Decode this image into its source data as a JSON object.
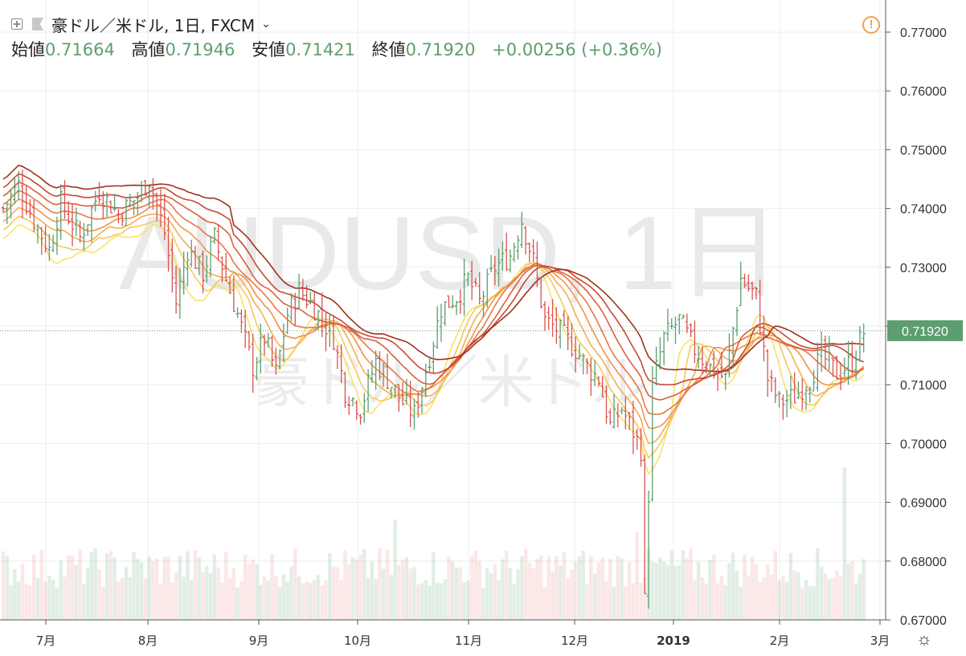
{
  "legend": {
    "symbol_name": "豪ドル／米ドル, 1日, FXCM",
    "chevron": "⌄",
    "open_label": "始値",
    "open_value": "0.71664",
    "high_label": "高値",
    "high_value": "0.71946",
    "low_label": "安値",
    "low_value": "0.71421",
    "close_label": "終値",
    "close_value": "0.71920",
    "change": "+0.00256 (+0.36%)"
  },
  "watermark": {
    "line1": "AUDUSD, 1日",
    "line2": "豪ドル／米ドル"
  },
  "alert_icon": "!",
  "settings_icon": "☼",
  "colors": {
    "up": "#5d9e6e",
    "down": "#d9534f",
    "price_label_bg": "#5d9e6e",
    "ma_dark": "#a0301e",
    "ma_light": "#f7e26b"
  },
  "chart_data": {
    "type": "candlestick",
    "symbol": "AUDUSD",
    "interval": "1日",
    "ylim": [
      0.67,
      0.775
    ],
    "y_ticks": [
      "0.77000",
      "0.76000",
      "0.75000",
      "0.74000",
      "0.73000",
      "0.72000",
      "0.71000",
      "0.70000",
      "0.69000",
      "0.68000",
      "0.67000"
    ],
    "x_ticks": [
      "7月",
      "8月",
      "9月",
      "10月",
      "11月",
      "12月",
      "2019",
      "2月",
      "3月"
    ],
    "last_price": "0.71920",
    "price_keypoints": [
      [
        0,
        0.74
      ],
      [
        4,
        0.744
      ],
      [
        8,
        0.738
      ],
      [
        12,
        0.733
      ],
      [
        15,
        0.741
      ],
      [
        20,
        0.735
      ],
      [
        25,
        0.743
      ],
      [
        30,
        0.739
      ],
      [
        35,
        0.742
      ],
      [
        38,
        0.745
      ],
      [
        42,
        0.736
      ],
      [
        45,
        0.724
      ],
      [
        48,
        0.733
      ],
      [
        52,
        0.729
      ],
      [
        55,
        0.735
      ],
      [
        58,
        0.728
      ],
      [
        61,
        0.722
      ],
      [
        65,
        0.713
      ],
      [
        68,
        0.718
      ],
      [
        71,
        0.712
      ],
      [
        74,
        0.722
      ],
      [
        77,
        0.726
      ],
      [
        80,
        0.724
      ],
      [
        83,
        0.721
      ],
      [
        86,
        0.718
      ],
      [
        89,
        0.709
      ],
      [
        93,
        0.706
      ],
      [
        97,
        0.714
      ],
      [
        101,
        0.71
      ],
      [
        104,
        0.707
      ],
      [
        107,
        0.705
      ],
      [
        111,
        0.715
      ],
      [
        114,
        0.723
      ],
      [
        118,
        0.725
      ],
      [
        121,
        0.728
      ],
      [
        124,
        0.724
      ],
      [
        128,
        0.73
      ],
      [
        132,
        0.732
      ],
      [
        135,
        0.738
      ],
      [
        138,
        0.731
      ],
      [
        141,
        0.721
      ],
      [
        145,
        0.719
      ],
      [
        149,
        0.716
      ],
      [
        152,
        0.713
      ],
      [
        155,
        0.711
      ],
      [
        158,
        0.703
      ],
      [
        161,
        0.706
      ],
      [
        164,
        0.702
      ],
      [
        166,
        0.699
      ],
      [
        167,
        0.673
      ],
      [
        169,
        0.71
      ],
      [
        172,
        0.718
      ],
      [
        176,
        0.721
      ],
      [
        180,
        0.716
      ],
      [
        184,
        0.713
      ],
      [
        188,
        0.711
      ],
      [
        192,
        0.728
      ],
      [
        196,
        0.725
      ],
      [
        199,
        0.711
      ],
      [
        202,
        0.707
      ],
      [
        206,
        0.708
      ],
      [
        210,
        0.711
      ],
      [
        213,
        0.715
      ],
      [
        217,
        0.712
      ],
      [
        221,
        0.714
      ],
      [
        224,
        0.719
      ]
    ],
    "num_bars": 225
  }
}
